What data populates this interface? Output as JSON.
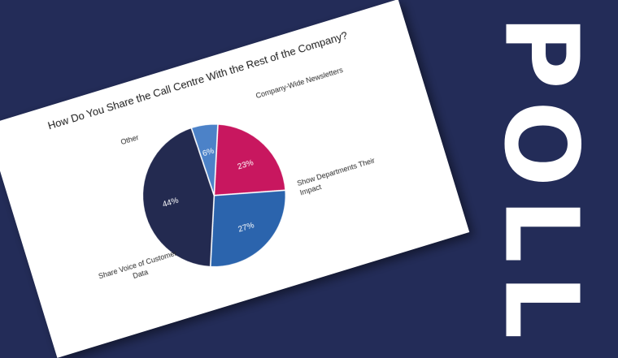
{
  "poll_label": "POLL",
  "chart_data": {
    "type": "pie",
    "title": "How Do You Share the Call Centre With the Rest of the Company?",
    "slices": [
      {
        "label": "Company-Wide Newsletters",
        "value": 23,
        "pct_text": "23%",
        "label_lines": [
          "Company-Wide Newsletters"
        ],
        "color": "#c8175f"
      },
      {
        "label": "Show Departments Their Impact",
        "value": 27,
        "pct_text": "27%",
        "label_lines": [
          "Show Departments Their",
          "Impact"
        ],
        "color": "#2b64ad"
      },
      {
        "label": "Share Voice of Customer Data",
        "value": 44,
        "pct_text": "44%",
        "label_lines": [
          "Share Voice of Customer",
          "Data"
        ],
        "color": "#232a50"
      },
      {
        "label": "Other",
        "value": 6,
        "pct_text": "6%",
        "label_lines": [
          "Other"
        ],
        "color": "#4c82c8"
      }
    ]
  }
}
